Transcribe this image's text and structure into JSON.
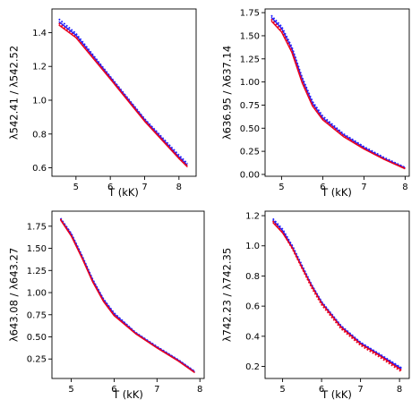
{
  "colors": {
    "blue": "#1f1fff",
    "red": "#e8001c",
    "frame": "#000000",
    "background": "#ffffff"
  },
  "chart_data": [
    {
      "type": "line",
      "xlabel": "T (kK)",
      "ylabel": "λ542.41 / λ542.52",
      "xlim": [
        4.3,
        8.5
      ],
      "ylim": [
        0.55,
        1.54
      ],
      "xticks": [
        "5",
        "6",
        "7",
        "8"
      ],
      "yticks": [
        "0.6",
        "0.8",
        "1.0",
        "1.2",
        "1.4"
      ],
      "grid": false,
      "series": [
        {
          "color": "blue",
          "style": "dotted",
          "x": [
            4.5,
            5.0,
            6.0,
            7.0,
            8.0,
            8.25
          ],
          "y": [
            1.48,
            1.395,
            1.14,
            0.89,
            0.675,
            0.625
          ]
        },
        {
          "color": "blue",
          "style": "solid",
          "x": [
            4.5,
            5.0,
            6.0,
            7.0,
            8.0,
            8.25
          ],
          "y": [
            1.465,
            1.385,
            1.135,
            0.885,
            0.665,
            0.615
          ]
        },
        {
          "color": "red",
          "style": "dotted",
          "x": [
            4.5,
            5.0,
            6.0,
            7.0,
            8.0,
            8.25
          ],
          "y": [
            1.455,
            1.375,
            1.13,
            0.88,
            0.66,
            0.61
          ]
        },
        {
          "color": "red",
          "style": "solid",
          "x": [
            4.5,
            5.0,
            6.0,
            7.0,
            8.0,
            8.25
          ],
          "y": [
            1.445,
            1.37,
            1.125,
            0.875,
            0.655,
            0.605
          ]
        }
      ]
    },
    {
      "type": "line",
      "xlabel": "T (kK)",
      "ylabel": "λ636.95 / λ637.14",
      "xlim": [
        4.6,
        8.1
      ],
      "ylim": [
        -0.02,
        1.79
      ],
      "xticks": [
        "5",
        "6",
        "7",
        "8"
      ],
      "yticks": [
        "0.00",
        "0.25",
        "0.50",
        "0.75",
        "1.00",
        "1.25",
        "1.50",
        "1.75"
      ],
      "grid": false,
      "series": [
        {
          "color": "blue",
          "style": "dotted",
          "x": [
            4.75,
            5.0,
            5.25,
            5.5,
            5.75,
            6.0,
            6.5,
            7.0,
            7.5,
            8.0
          ],
          "y": [
            1.72,
            1.6,
            1.38,
            1.05,
            0.79,
            0.63,
            0.44,
            0.3,
            0.18,
            0.075
          ]
        },
        {
          "color": "blue",
          "style": "solid",
          "x": [
            4.75,
            5.0,
            5.25,
            5.5,
            5.75,
            6.0,
            6.5,
            7.0,
            7.5,
            8.0
          ],
          "y": [
            1.7,
            1.58,
            1.36,
            1.03,
            0.77,
            0.61,
            0.43,
            0.29,
            0.17,
            0.07
          ]
        },
        {
          "color": "red",
          "style": "dotted",
          "x": [
            4.75,
            5.0,
            5.25,
            5.5,
            5.75,
            6.0,
            6.5,
            7.0,
            7.5,
            8.0
          ],
          "y": [
            1.68,
            1.56,
            1.34,
            1.01,
            0.75,
            0.6,
            0.42,
            0.28,
            0.165,
            0.065
          ]
        },
        {
          "color": "red",
          "style": "solid",
          "x": [
            4.75,
            5.0,
            5.25,
            5.5,
            5.75,
            6.0,
            6.5,
            7.0,
            7.5,
            8.0
          ],
          "y": [
            1.66,
            1.54,
            1.32,
            0.99,
            0.74,
            0.59,
            0.41,
            0.275,
            0.16,
            0.06
          ]
        }
      ]
    },
    {
      "type": "line",
      "xlabel": "T (kK)",
      "ylabel": "λ643.08 / λ643.27",
      "xlim": [
        4.55,
        8.1
      ],
      "ylim": [
        0.03,
        1.92
      ],
      "xticks": [
        "5",
        "6",
        "7",
        "8"
      ],
      "yticks": [
        "0.25",
        "0.50",
        "0.75",
        "1.00",
        "1.25",
        "1.50",
        "1.75"
      ],
      "grid": false,
      "series": [
        {
          "color": "blue",
          "style": "dotted",
          "x": [
            4.75,
            5.0,
            5.25,
            5.5,
            5.75,
            6.0,
            6.5,
            7.0,
            7.5,
            7.88
          ],
          "y": [
            1.84,
            1.67,
            1.42,
            1.15,
            0.93,
            0.77,
            0.55,
            0.39,
            0.24,
            0.11
          ]
        },
        {
          "color": "blue",
          "style": "solid",
          "x": [
            4.75,
            5.0,
            5.25,
            5.5,
            5.75,
            6.0,
            6.5,
            7.0,
            7.5,
            7.88
          ],
          "y": [
            1.83,
            1.66,
            1.41,
            1.14,
            0.92,
            0.76,
            0.545,
            0.385,
            0.235,
            0.105
          ]
        },
        {
          "color": "red",
          "style": "dotted",
          "x": [
            4.75,
            5.0,
            5.25,
            5.5,
            5.75,
            6.0,
            6.5,
            7.0,
            7.5,
            7.88
          ],
          "y": [
            1.83,
            1.65,
            1.4,
            1.13,
            0.91,
            0.75,
            0.54,
            0.38,
            0.23,
            0.1
          ]
        },
        {
          "color": "red",
          "style": "solid",
          "x": [
            4.75,
            5.0,
            5.25,
            5.5,
            5.75,
            6.0,
            6.5,
            7.0,
            7.5,
            7.88
          ],
          "y": [
            1.82,
            1.64,
            1.39,
            1.12,
            0.9,
            0.74,
            0.535,
            0.375,
            0.225,
            0.095
          ]
        }
      ]
    },
    {
      "type": "line",
      "xlabel": "T (kK)",
      "ylabel": "λ742.23 / λ742.35",
      "xlim": [
        4.55,
        8.25
      ],
      "ylim": [
        0.12,
        1.23
      ],
      "xticks": [
        "5",
        "6",
        "7",
        "8"
      ],
      "yticks": [
        "0.2",
        "0.4",
        "0.6",
        "0.8",
        "1.0",
        "1.2"
      ],
      "grid": false,
      "series": [
        {
          "color": "blue",
          "style": "dotted",
          "x": [
            4.75,
            5.0,
            5.25,
            5.5,
            5.75,
            6.0,
            6.5,
            7.0,
            7.5,
            8.05
          ],
          "y": [
            1.18,
            1.11,
            1.0,
            0.87,
            0.74,
            0.63,
            0.47,
            0.36,
            0.28,
            0.19
          ]
        },
        {
          "color": "blue",
          "style": "solid",
          "x": [
            4.75,
            5.0,
            5.25,
            5.5,
            5.75,
            6.0,
            6.5,
            7.0,
            7.5,
            8.05
          ],
          "y": [
            1.17,
            1.1,
            0.99,
            0.86,
            0.735,
            0.625,
            0.465,
            0.355,
            0.275,
            0.185
          ]
        },
        {
          "color": "red",
          "style": "dotted",
          "x": [
            4.75,
            5.0,
            5.25,
            5.5,
            5.75,
            6.0,
            6.5,
            7.0,
            7.5,
            8.05
          ],
          "y": [
            1.165,
            1.09,
            0.98,
            0.85,
            0.72,
            0.61,
            0.45,
            0.34,
            0.26,
            0.165
          ]
        },
        {
          "color": "red",
          "style": "solid",
          "x": [
            4.75,
            5.0,
            5.25,
            5.5,
            5.75,
            6.0,
            6.5,
            7.0,
            7.5,
            8.05
          ],
          "y": [
            1.155,
            1.085,
            0.985,
            0.855,
            0.73,
            0.62,
            0.46,
            0.35,
            0.27,
            0.175
          ]
        }
      ]
    }
  ]
}
